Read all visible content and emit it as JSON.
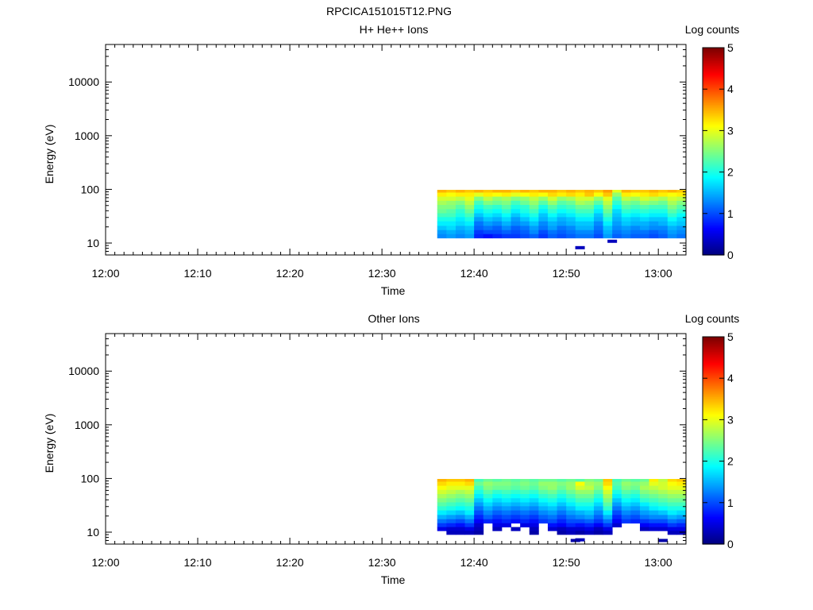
{
  "figure_title": "RPCICA151015T12.PNG",
  "chart_data": [
    {
      "type": "heatmap",
      "title": "H+ He++ Ions",
      "xlabel": "Time",
      "ylabel": "Energy (eV)",
      "y_scale": "log",
      "ylim": [
        6,
        50000
      ],
      "xlim": [
        "12:00",
        "13:03"
      ],
      "x_ticks": [
        "12:00",
        "12:10",
        "12:20",
        "12:30",
        "12:40",
        "12:50",
        "13:00"
      ],
      "y_ticks": [
        "10",
        "100",
        "1000",
        "10000"
      ],
      "colorbar": {
        "label": "Log counts",
        "range": [
          0,
          5
        ],
        "ticks": [
          "0",
          "1",
          "2",
          "3",
          "4",
          "5"
        ],
        "colormap": "jet"
      },
      "data_extent": {
        "time_start": "12:36",
        "time_end": "13:03",
        "energy_min": 12.5,
        "energy_max": 98
      },
      "energy_bins": [
        95,
        80,
        67,
        56,
        47,
        39,
        33,
        28,
        23,
        19,
        16,
        13.5
      ],
      "time_bins": [
        "12:36",
        "12:37",
        "12:38",
        "12:39",
        "12:40",
        "12:41",
        "12:42",
        "12:43",
        "12:44",
        "12:45",
        "12:46",
        "12:47",
        "12:48",
        "12:49",
        "12:50",
        "12:51",
        "12:52",
        "12:53",
        "12:54",
        "12:55",
        "12:56",
        "12:57",
        "12:58",
        "12:59",
        "13:00",
        "13:01",
        "13:02"
      ],
      "values": [
        [
          3.5,
          3.4,
          3.5,
          3.4,
          3.5,
          3.4,
          3.5,
          3.5,
          3.4,
          3.5,
          3.4,
          3.5,
          3.5,
          3.4,
          3.5,
          3.4,
          3.5,
          3.4,
          3.6,
          3.0,
          3.5,
          3.4,
          3.4,
          3.5,
          3.4,
          3.5,
          3.4
        ],
        [
          3.2,
          3.1,
          3.2,
          3.2,
          3.0,
          3.2,
          3.1,
          3.2,
          3.0,
          3.1,
          3.2,
          3.1,
          3.3,
          3.2,
          3.3,
          3.2,
          3.4,
          3.1,
          3.4,
          2.6,
          3.2,
          3.1,
          3.2,
          3.3,
          3.2,
          3.1,
          3.2
        ],
        [
          2.9,
          2.9,
          2.8,
          3.0,
          2.5,
          2.8,
          2.6,
          2.7,
          2.5,
          2.6,
          2.8,
          2.6,
          2.9,
          2.6,
          2.7,
          2.9,
          2.9,
          2.6,
          3.0,
          2.3,
          2.8,
          2.7,
          2.9,
          2.8,
          2.7,
          2.9,
          2.8
        ],
        [
          2.7,
          2.6,
          2.5,
          2.8,
          2.2,
          2.5,
          2.4,
          2.5,
          2.2,
          2.4,
          2.6,
          2.3,
          2.6,
          2.3,
          2.4,
          2.7,
          2.6,
          2.3,
          2.8,
          2.1,
          2.5,
          2.4,
          2.6,
          2.5,
          2.4,
          2.7,
          2.5
        ],
        [
          2.5,
          2.5,
          2.3,
          2.6,
          2.0,
          2.2,
          2.1,
          2.3,
          2.0,
          2.1,
          2.4,
          2.0,
          2.3,
          2.1,
          2.2,
          2.4,
          2.4,
          2.0,
          2.6,
          1.9,
          2.3,
          2.2,
          2.3,
          2.2,
          2.2,
          2.5,
          2.3
        ],
        [
          2.4,
          2.3,
          2.1,
          2.4,
          1.8,
          2.0,
          1.9,
          2.1,
          1.8,
          2.0,
          2.2,
          1.8,
          2.1,
          1.9,
          2.0,
          2.2,
          2.2,
          1.8,
          2.4,
          1.7,
          2.1,
          2.0,
          2.1,
          2.0,
          2.0,
          2.3,
          2.1
        ],
        [
          2.2,
          2.2,
          2.0,
          2.2,
          1.6,
          1.8,
          1.7,
          1.9,
          1.6,
          1.8,
          2.0,
          1.6,
          1.9,
          1.7,
          1.8,
          2.0,
          2.0,
          1.6,
          2.2,
          1.6,
          1.9,
          1.8,
          1.9,
          1.8,
          1.8,
          2.1,
          1.9
        ],
        [
          2.0,
          2.0,
          1.8,
          2.0,
          1.4,
          1.6,
          1.5,
          1.7,
          1.4,
          1.6,
          1.8,
          1.5,
          1.7,
          1.5,
          1.6,
          1.8,
          1.8,
          1.5,
          2.0,
          1.5,
          1.7,
          1.6,
          1.7,
          1.6,
          1.6,
          1.9,
          1.7
        ],
        [
          1.8,
          1.8,
          1.7,
          1.8,
          1.2,
          1.4,
          1.3,
          1.5,
          1.3,
          1.4,
          1.6,
          1.3,
          1.5,
          1.4,
          1.5,
          1.6,
          1.6,
          1.3,
          1.8,
          1.4,
          1.6,
          1.5,
          1.5,
          1.4,
          1.5,
          1.7,
          1.6
        ],
        [
          1.6,
          1.7,
          1.5,
          1.6,
          1.1,
          1.2,
          1.1,
          1.3,
          1.1,
          1.2,
          1.4,
          1.2,
          1.4,
          1.2,
          1.3,
          1.5,
          1.5,
          1.2,
          1.6,
          1.3,
          1.4,
          1.3,
          1.4,
          1.3,
          1.3,
          1.5,
          1.4
        ],
        [
          1.4,
          1.5,
          1.4,
          1.5,
          0.9,
          1.0,
          1.0,
          1.1,
          1.0,
          1.1,
          1.3,
          1.0,
          1.2,
          1.1,
          1.2,
          1.3,
          1.3,
          1.1,
          1.5,
          1.2,
          1.3,
          1.2,
          1.2,
          1.1,
          1.2,
          1.4,
          1.3
        ],
        [
          1.3,
          1.4,
          1.3,
          1.4,
          0.8,
          0.7,
          0.8,
          0.9,
          0.9,
          1.0,
          1.1,
          0.9,
          1.1,
          1.0,
          1.1,
          1.2,
          1.2,
          1.0,
          1.4,
          1.1,
          1.2,
          1.1,
          1.1,
          1.0,
          1.1,
          1.3,
          1.2
        ]
      ],
      "extra_points": [
        {
          "time": "12:51.5",
          "energy": 8.2,
          "value": 0.3
        },
        {
          "time": "12:55",
          "energy": 10.8,
          "value": 0.3
        }
      ]
    },
    {
      "type": "heatmap",
      "title": "Other Ions",
      "xlabel": "Time",
      "ylabel": "Energy (eV)",
      "y_scale": "log",
      "ylim": [
        6,
        50000
      ],
      "xlim": [
        "12:00",
        "13:03"
      ],
      "x_ticks": [
        "12:00",
        "12:10",
        "12:20",
        "12:30",
        "12:40",
        "12:50",
        "13:00"
      ],
      "y_ticks": [
        "10",
        "100",
        "1000",
        "10000"
      ],
      "colorbar": {
        "label": "Log counts",
        "range": [
          0,
          5
        ],
        "ticks": [
          "0",
          "1",
          "2",
          "3",
          "4",
          "5"
        ],
        "colormap": "jet"
      },
      "data_extent": {
        "time_start": "12:36",
        "time_end": "13:03",
        "energy_min": 9,
        "energy_max": 98
      },
      "energy_bins": [
        95,
        80,
        67,
        56,
        47,
        39,
        33,
        28,
        23,
        19,
        16,
        13.5,
        11.5,
        9.8
      ],
      "time_bins": [
        "12:36",
        "12:37",
        "12:38",
        "12:39",
        "12:40",
        "12:41",
        "12:42",
        "12:43",
        "12:44",
        "12:45",
        "12:46",
        "12:47",
        "12:48",
        "12:49",
        "12:50",
        "12:51",
        "12:52",
        "12:53",
        "12:54",
        "12:55",
        "12:56",
        "12:57",
        "12:58",
        "12:59",
        "13:00",
        "13:01",
        "13:02"
      ],
      "values": [
        [
          3.5,
          3.4,
          3.4,
          3.5,
          2.2,
          2.4,
          2.3,
          2.4,
          2.3,
          2.4,
          2.3,
          2.4,
          2.4,
          2.3,
          2.4,
          2.3,
          2.5,
          2.4,
          3.4,
          2.2,
          2.4,
          2.3,
          2.4,
          3.2,
          2.8,
          3.3,
          3.4
        ],
        [
          3.3,
          3.2,
          3.2,
          3.3,
          2.4,
          2.6,
          2.5,
          2.5,
          2.4,
          2.5,
          2.4,
          2.6,
          2.6,
          2.5,
          2.6,
          3.1,
          2.7,
          2.6,
          3.3,
          2.3,
          2.6,
          2.5,
          2.6,
          3.0,
          2.9,
          3.1,
          3.2
        ],
        [
          3.1,
          3.0,
          3.0,
          3.0,
          2.2,
          2.5,
          2.4,
          2.4,
          2.3,
          2.4,
          2.3,
          2.5,
          2.6,
          2.4,
          2.6,
          2.9,
          2.8,
          2.5,
          3.1,
          2.2,
          2.5,
          2.4,
          2.7,
          2.8,
          2.9,
          3.0,
          3.0
        ],
        [
          2.9,
          2.8,
          2.7,
          2.8,
          2.0,
          2.3,
          2.1,
          2.2,
          2.1,
          2.2,
          2.1,
          2.3,
          2.4,
          2.2,
          2.4,
          2.6,
          2.6,
          2.3,
          2.9,
          2.0,
          2.3,
          2.2,
          2.5,
          2.6,
          2.7,
          2.8,
          2.8
        ],
        [
          2.7,
          2.6,
          2.5,
          2.6,
          1.8,
          2.1,
          1.9,
          2.0,
          1.9,
          2.0,
          1.9,
          2.1,
          2.2,
          2.0,
          2.2,
          2.4,
          2.4,
          2.1,
          2.7,
          1.8,
          2.1,
          2.0,
          2.3,
          2.4,
          2.5,
          2.6,
          2.6
        ],
        [
          2.5,
          2.4,
          2.3,
          2.4,
          1.6,
          1.9,
          1.7,
          1.8,
          1.7,
          1.8,
          1.7,
          1.9,
          2.0,
          1.8,
          2.0,
          2.2,
          2.2,
          1.9,
          2.5,
          1.6,
          1.9,
          1.8,
          2.1,
          2.2,
          2.3,
          2.4,
          2.4
        ],
        [
          2.3,
          2.2,
          2.1,
          2.2,
          1.4,
          1.7,
          1.5,
          1.6,
          1.5,
          1.6,
          1.5,
          1.7,
          1.8,
          1.6,
          1.8,
          2.0,
          2.0,
          1.7,
          2.3,
          1.4,
          1.7,
          1.6,
          1.8,
          2.0,
          2.1,
          2.2,
          2.2
        ],
        [
          2.1,
          2.0,
          1.9,
          2.0,
          1.2,
          1.5,
          1.3,
          1.4,
          1.3,
          1.4,
          1.3,
          1.5,
          1.6,
          1.4,
          1.6,
          1.8,
          1.8,
          1.5,
          2.1,
          1.2,
          1.5,
          1.4,
          1.6,
          1.8,
          1.9,
          2.0,
          2.0
        ],
        [
          1.8,
          1.7,
          1.6,
          1.8,
          1.0,
          1.3,
          1.1,
          1.2,
          1.1,
          1.2,
          1.1,
          1.3,
          1.4,
          1.2,
          1.4,
          1.5,
          1.6,
          1.3,
          1.8,
          1.0,
          1.3,
          1.2,
          1.4,
          1.5,
          1.6,
          1.8,
          1.7
        ],
        [
          1.5,
          1.4,
          1.3,
          1.5,
          0.8,
          1.1,
          0.9,
          1.0,
          0.9,
          1.0,
          0.9,
          1.1,
          1.2,
          1.0,
          1.2,
          1.3,
          1.4,
          1.1,
          1.5,
          0.8,
          1.1,
          1.0,
          1.2,
          1.3,
          1.3,
          1.5,
          1.4
        ],
        [
          1.2,
          1.1,
          1.0,
          1.2,
          0.6,
          0.8,
          0.7,
          0.8,
          0.7,
          0.8,
          0.7,
          0.9,
          1.0,
          0.8,
          1.0,
          1.0,
          1.1,
          0.9,
          1.2,
          0.6,
          0.9,
          0.8,
          0.9,
          1.0,
          1.0,
          1.2,
          1.1
        ],
        [
          0.9,
          0.8,
          0.7,
          0.9,
          0.4,
          null,
          0.5,
          0.5,
          null,
          0.5,
          0.5,
          null,
          0.7,
          0.6,
          0.8,
          0.7,
          0.8,
          0.6,
          0.9,
          0.4,
          null,
          null,
          0.6,
          0.7,
          0.7,
          0.9,
          0.8
        ],
        [
          0.5,
          0.4,
          0.4,
          0.5,
          0.3,
          null,
          0.3,
          null,
          0.3,
          null,
          0.3,
          null,
          0.4,
          0.3,
          0.4,
          0.4,
          0.5,
          0.3,
          0.5,
          null,
          null,
          null,
          0.3,
          0.4,
          0.4,
          0.5,
          0.5
        ],
        [
          null,
          0.3,
          0.3,
          0.3,
          0.2,
          null,
          null,
          null,
          null,
          null,
          0.2,
          null,
          null,
          0.2,
          0.3,
          0.2,
          0.3,
          0.2,
          0.3,
          null,
          null,
          null,
          null,
          null,
          null,
          0.3,
          0.3
        ]
      ],
      "extra_points": [
        {
          "time": "12:51.5",
          "energy": 7.2,
          "value": 0.3
        },
        {
          "time": "13:00.5",
          "energy": 7.0,
          "value": 0.2
        },
        {
          "time": "12:51",
          "energy": 7.0,
          "value": 0.2
        }
      ]
    }
  ]
}
